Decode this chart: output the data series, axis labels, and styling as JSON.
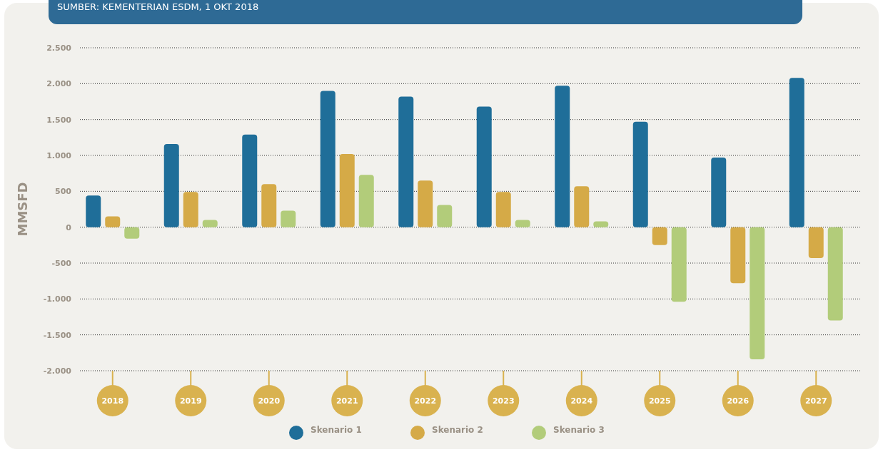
{
  "chart_data": {
    "type": "bar",
    "annotations": [
      "SUMBER: KEMENTERIAN ESDM, 1 OKT 2018"
    ],
    "ylabel": "MMSFD",
    "categories": [
      "2018",
      "2019",
      "2020",
      "2021",
      "2022",
      "2023",
      "2024",
      "2025",
      "2026",
      "2027"
    ],
    "series": [
      {
        "name": "Skenario 1",
        "color": "#1f6e99",
        "values": [
          440,
          1160,
          1290,
          1900,
          1820,
          1680,
          1970,
          1470,
          970,
          2080
        ]
      },
      {
        "name": "Skenario 2",
        "color": "#d5aa47",
        "values": [
          150,
          490,
          600,
          1020,
          650,
          490,
          570,
          -250,
          -780,
          -430
        ]
      },
      {
        "name": "Skenario 3",
        "color": "#b2cc7a",
        "values": [
          -160,
          100,
          230,
          730,
          310,
          100,
          80,
          -1040,
          -1840,
          -1300
        ]
      }
    ],
    "ylim": [
      -2000,
      2500
    ],
    "yticks": [
      {
        "value": -2000,
        "label": "-2.000"
      },
      {
        "value": -1500,
        "label": "-1.500"
      },
      {
        "value": -1000,
        "label": "-1.000"
      },
      {
        "value": -500,
        "label": "-500"
      },
      0,
      500,
      {
        "value": 1000,
        "label": "1.000"
      },
      {
        "value": 1500,
        "label": "1.500"
      },
      {
        "value": 2000,
        "label": "2.000"
      },
      {
        "value": 2500,
        "label": "2.500"
      }
    ],
    "grid": "y",
    "legend": "bottom"
  }
}
